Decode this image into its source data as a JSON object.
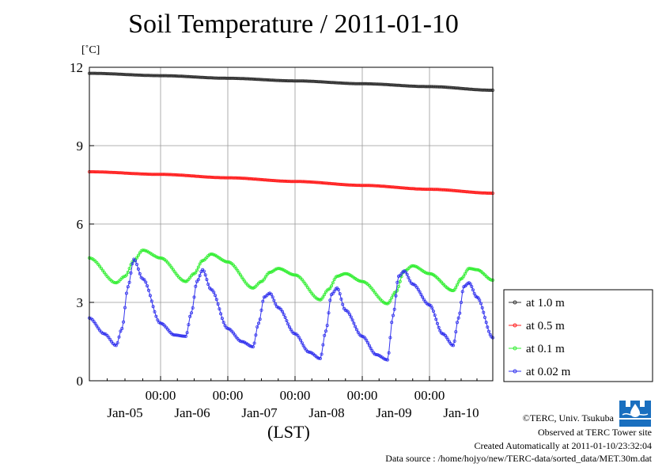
{
  "header": {
    "title": "Soil Temperature / 2011-01-10",
    "unit": "[˚C]"
  },
  "colors": {
    "at_1_0m": "#333333",
    "at_0_5m": "#ff2020",
    "at_0_1m": "#33ee33",
    "at_0_02m": "#3333ee",
    "grid": "#999999"
  },
  "footer": {
    "axis_label": "(LST)",
    "copyright": "©TERC, Univ. Tsukuba",
    "observed": "Observed at TERC Tower site",
    "created": "Created Automatically at 2011-01-10/23:32:04",
    "source": "Data source : /home/hojyo/new/TERC-data/sorted_data/MET.30m.dat"
  },
  "chart_data": {
    "type": "line",
    "title": "Soil Temperature / 2011-01-10",
    "xlabel": "(LST)",
    "ylabel": "[˚C]",
    "ylim": [
      0,
      12
    ],
    "yticks": [
      0,
      3,
      6,
      9,
      12
    ],
    "x_tick_time_label": "00:00",
    "x_date_labels": [
      "Jan-05",
      "Jan-06",
      "Jan-07",
      "Jan-08",
      "Jan-09",
      "Jan-10"
    ],
    "xlim_days": [
      "Jan-04 00:00",
      "Jan-10 00:00"
    ],
    "grid": true,
    "legend_position": "right",
    "series": [
      {
        "name": "at 1.0 m",
        "color": "#333333",
        "points": [
          [
            "Jan-04 00:00",
            11.77
          ],
          [
            "Jan-05 00:00",
            11.68
          ],
          [
            "Jan-06 00:00",
            11.58
          ],
          [
            "Jan-07 00:00",
            11.48
          ],
          [
            "Jan-08 00:00",
            11.37
          ],
          [
            "Jan-09 00:00",
            11.26
          ],
          [
            "Jan-10 00:00",
            11.12
          ]
        ]
      },
      {
        "name": "at 0.5 m",
        "color": "#ff2020",
        "points": [
          [
            "Jan-04 00:00",
            8.0
          ],
          [
            "Jan-05 00:00",
            7.9
          ],
          [
            "Jan-06 00:00",
            7.77
          ],
          [
            "Jan-07 00:00",
            7.63
          ],
          [
            "Jan-08 00:00",
            7.48
          ],
          [
            "Jan-09 00:00",
            7.33
          ],
          [
            "Jan-10 00:00",
            7.18
          ]
        ]
      },
      {
        "name": "at 0.1 m",
        "color": "#33ee33",
        "points": [
          [
            "Jan-04 00:00",
            4.7
          ],
          [
            "Jan-04 09:00",
            3.75
          ],
          [
            "Jan-04 12:00",
            4.0
          ],
          [
            "Jan-04 15:00",
            4.6
          ],
          [
            "Jan-04 18:00",
            5.0
          ],
          [
            "Jan-05 00:00",
            4.7
          ],
          [
            "Jan-05 09:00",
            3.8
          ],
          [
            "Jan-05 12:00",
            4.1
          ],
          [
            "Jan-05 15:00",
            4.6
          ],
          [
            "Jan-05 18:00",
            4.85
          ],
          [
            "Jan-06 00:00",
            4.55
          ],
          [
            "Jan-06 09:00",
            3.55
          ],
          [
            "Jan-06 12:00",
            3.8
          ],
          [
            "Jan-06 15:00",
            4.15
          ],
          [
            "Jan-06 18:00",
            4.3
          ],
          [
            "Jan-07 00:00",
            4.05
          ],
          [
            "Jan-07 09:00",
            3.1
          ],
          [
            "Jan-07 12:00",
            3.5
          ],
          [
            "Jan-07 15:00",
            4.0
          ],
          [
            "Jan-07 18:00",
            4.1
          ],
          [
            "Jan-08 00:00",
            3.8
          ],
          [
            "Jan-08 09:00",
            2.95
          ],
          [
            "Jan-08 12:00",
            3.4
          ],
          [
            "Jan-08 15:00",
            4.2
          ],
          [
            "Jan-08 18:00",
            4.4
          ],
          [
            "Jan-09 00:00",
            4.1
          ],
          [
            "Jan-09 09:00",
            3.45
          ],
          [
            "Jan-09 12:00",
            3.9
          ],
          [
            "Jan-09 15:00",
            4.3
          ],
          [
            "Jan-09 18:00",
            4.25
          ],
          [
            "Jan-10 00:00",
            3.85
          ]
        ]
      },
      {
        "name": "at 0.02 m",
        "color": "#3333ee",
        "points": [
          [
            "Jan-04 00:00",
            2.4
          ],
          [
            "Jan-04 05:00",
            1.8
          ],
          [
            "Jan-04 09:00",
            1.35
          ],
          [
            "Jan-04 11:00",
            2.0
          ],
          [
            "Jan-04 13:00",
            3.6
          ],
          [
            "Jan-04 15:00",
            4.65
          ],
          [
            "Jan-04 18:00",
            3.9
          ],
          [
            "Jan-05 00:00",
            2.2
          ],
          [
            "Jan-05 05:00",
            1.75
          ],
          [
            "Jan-05 09:00",
            1.7
          ],
          [
            "Jan-05 11:00",
            2.6
          ],
          [
            "Jan-05 13:00",
            3.8
          ],
          [
            "Jan-05 15:00",
            4.25
          ],
          [
            "Jan-05 18:00",
            3.5
          ],
          [
            "Jan-06 00:00",
            2.0
          ],
          [
            "Jan-06 05:00",
            1.5
          ],
          [
            "Jan-06 09:00",
            1.3
          ],
          [
            "Jan-06 11:00",
            2.2
          ],
          [
            "Jan-06 13:00",
            3.2
          ],
          [
            "Jan-06 15:00",
            3.35
          ],
          [
            "Jan-06 18:00",
            2.8
          ],
          [
            "Jan-07 00:00",
            1.8
          ],
          [
            "Jan-07 05:00",
            1.1
          ],
          [
            "Jan-07 09:00",
            0.85
          ],
          [
            "Jan-07 11:00",
            1.9
          ],
          [
            "Jan-07 13:00",
            3.3
          ],
          [
            "Jan-07 15:00",
            3.55
          ],
          [
            "Jan-07 18:00",
            2.7
          ],
          [
            "Jan-08 00:00",
            1.7
          ],
          [
            "Jan-08 05:00",
            1.0
          ],
          [
            "Jan-08 09:00",
            0.8
          ],
          [
            "Jan-08 11:00",
            2.5
          ],
          [
            "Jan-08 13:00",
            4.0
          ],
          [
            "Jan-08 15:00",
            4.2
          ],
          [
            "Jan-08 18:00",
            3.7
          ],
          [
            "Jan-09 00:00",
            2.9
          ],
          [
            "Jan-09 05:00",
            1.8
          ],
          [
            "Jan-09 09:00",
            1.35
          ],
          [
            "Jan-09 11:00",
            2.4
          ],
          [
            "Jan-09 13:00",
            3.6
          ],
          [
            "Jan-09 15:00",
            3.75
          ],
          [
            "Jan-09 18:00",
            3.2
          ],
          [
            "Jan-10 00:00",
            1.65
          ]
        ]
      }
    ]
  }
}
